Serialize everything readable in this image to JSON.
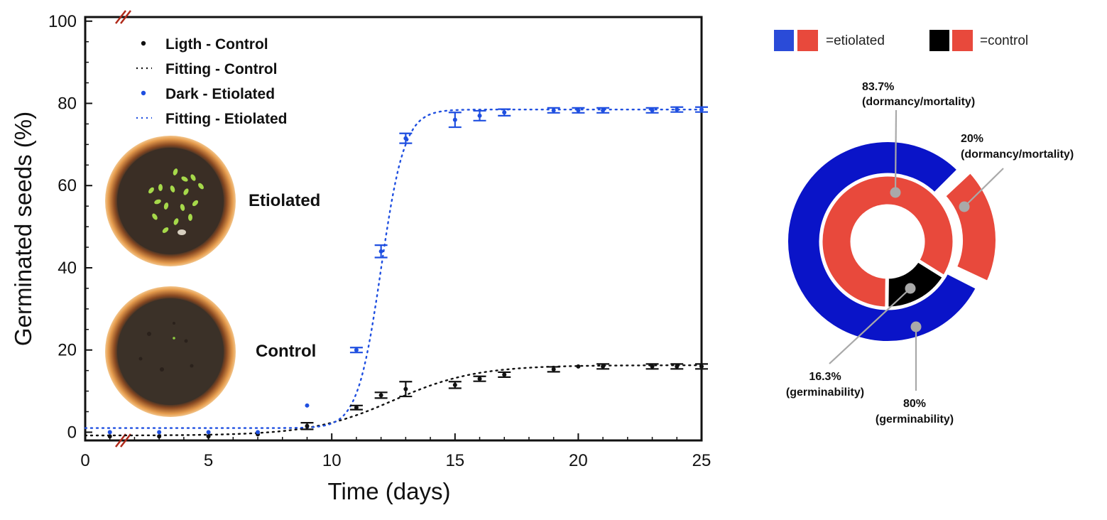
{
  "colors": {
    "control": "#111111",
    "etiolated": "#1f4fe0",
    "ring_blue": "#0a14c8",
    "ring_red": "#e8493c",
    "ring_black": "#000000",
    "leader": "#a9a9a9",
    "break_mark": "#b02a1a",
    "pot_rim": "#e49a4c",
    "soil": "#3a2e25"
  },
  "chart_data": [
    {
      "type": "scatter",
      "xlabel": "Time (days)",
      "ylabel": "Germinated seeds (%)",
      "xlim": [
        0,
        25
      ],
      "ylim": [
        -2,
        101
      ],
      "xticks": [
        0,
        5,
        10,
        15,
        20,
        25
      ],
      "yticks": [
        0,
        20,
        40,
        60,
        80,
        100
      ],
      "axis_break": "x axis broken between 1 and 2",
      "legend": {
        "position": "top-left",
        "entries": [
          {
            "label": "Ligth - Control",
            "marker": "dot",
            "color": "#111111"
          },
          {
            "label": "Fitting - Control",
            "marker": "dotted-line",
            "color": "#111111"
          },
          {
            "label": "Dark - Etiolated",
            "marker": "dot",
            "color": "#1f4fe0"
          },
          {
            "label": "Fitting - Etiolated",
            "marker": "dotted-line",
            "color": "#1f4fe0"
          }
        ]
      },
      "insets": [
        {
          "label": "Etiolated",
          "description": "pot with seedlings"
        },
        {
          "label": "Control",
          "description": "pot with soil"
        }
      ],
      "series": [
        {
          "name": "Ligth - Control",
          "color": "#111111",
          "x": [
            1,
            3,
            5,
            7,
            9,
            11,
            12,
            13,
            15,
            16,
            17,
            19,
            20,
            21,
            23,
            24,
            25
          ],
          "y": [
            -1,
            -1,
            -1,
            -0.5,
            1.5,
            6,
            9,
            10.5,
            11.5,
            13,
            14,
            15.3,
            16,
            16,
            16,
            16,
            16
          ],
          "err": [
            0,
            0,
            0,
            0,
            0.8,
            0.5,
            0.7,
            1.8,
            0.8,
            0.6,
            0.6,
            0.6,
            0,
            0.6,
            0.6,
            0.6,
            0.6
          ]
        },
        {
          "name": "Dark - Etiolated",
          "color": "#1f4fe0",
          "x": [
            1,
            3,
            5,
            7,
            9,
            11,
            12,
            13,
            15,
            16,
            17,
            19,
            20,
            21,
            23,
            24,
            25
          ],
          "y": [
            0,
            0,
            0,
            0,
            6.5,
            20,
            44,
            71.5,
            76,
            77,
            77.8,
            78.3,
            78.3,
            78.3,
            78.3,
            78.5,
            78.5
          ],
          "err": [
            0,
            0,
            0,
            0,
            0,
            0.6,
            1.5,
            1.2,
            1.8,
            1.2,
            0.8,
            0.6,
            0.6,
            0.6,
            0.6,
            0.6,
            0.6
          ]
        }
      ],
      "fits": [
        {
          "name": "Fitting - Control",
          "type": "sigmoid",
          "min": -0.8,
          "max": 16.3,
          "x0": 12.5,
          "k": 0.6
        },
        {
          "name": "Fitting - Etiolated",
          "type": "sigmoid",
          "min": 1,
          "max": 78.5,
          "x0": 12,
          "k": 2.1
        }
      ]
    },
    {
      "type": "pie",
      "style": "nested donut",
      "legend": [
        {
          "label": "=etiolated",
          "swatches": [
            "#0a14c8",
            "#e8493c"
          ]
        },
        {
          "label": "=control",
          "swatches": [
            "#000000",
            "#e8493c"
          ]
        }
      ],
      "rings": [
        {
          "name": "etiolated",
          "slices": [
            {
              "label": "80%",
              "caption": "(germinability)",
              "value": 80,
              "color": "#0a14c8"
            },
            {
              "label": "20%",
              "caption": "(dormancy/mortality)",
              "value": 20,
              "color": "#e8493c"
            }
          ]
        },
        {
          "name": "control",
          "slices": [
            {
              "label": "16.3%",
              "caption": "(germinability)",
              "value": 16.3,
              "color": "#000000"
            },
            {
              "label": "83.7%",
              "caption": "(dormancy/mortality)",
              "value": 83.7,
              "color": "#e8493c"
            }
          ]
        }
      ]
    }
  ]
}
